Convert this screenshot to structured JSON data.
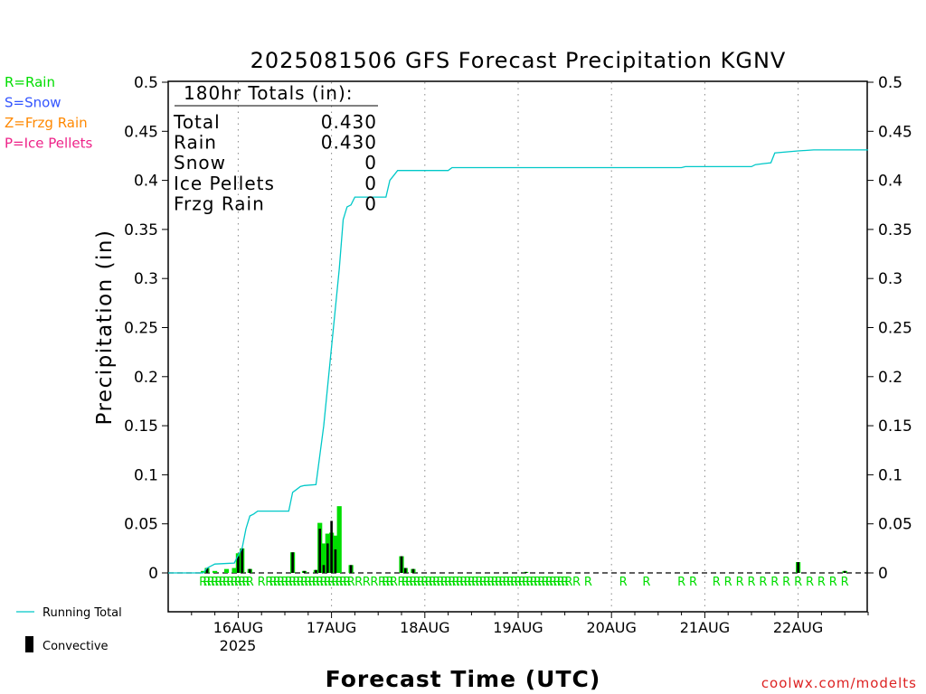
{
  "chart_data": {
    "type": "bar",
    "title": "2025081506 GFS Forecast Precipitation KGNV",
    "ylabel": "Precipitation (in)",
    "xlabel": "Forecast Time (UTC)",
    "ylim": [
      -0.04,
      0.5
    ],
    "y_ticks": [
      "0.5",
      "0.45",
      "0.4",
      "0.35",
      "0.3",
      "0.25",
      "0.2",
      "0.15",
      "0.1",
      "0.05",
      "0"
    ],
    "x_ticks": [
      "16AUG",
      "17AUG",
      "18AUG",
      "19AUG",
      "20AUG",
      "21AUG",
      "22AUG"
    ],
    "x_year": "2025",
    "grid": "vertical dotted at each day",
    "precip_legend": [
      {
        "label": "R=Rain",
        "color": "#00dd00"
      },
      {
        "label": "S=Snow",
        "color": "#3355ff"
      },
      {
        "label": "Z=Frzg Rain",
        "color": "#ff8800"
      },
      {
        "label": "P=Ice Pellets",
        "color": "#ee2288"
      }
    ],
    "totals": {
      "header": "180hr Totals (in):",
      "rows": [
        {
          "label": "Total",
          "value": "0.430"
        },
        {
          "label": "Rain",
          "value": "0.430"
        },
        {
          "label": "Snow",
          "value": "0"
        },
        {
          "label": "Ice Pellets",
          "value": "0"
        },
        {
          "label": "Frzg Rain",
          "value": "0"
        }
      ]
    },
    "series_legend": {
      "running_total": "Running Total",
      "convective": "Convective"
    },
    "colors": {
      "running_total": "#00c8c8",
      "rain_bar": "#00dd00",
      "convective": "#000000"
    },
    "x_units": "hours since 2025-08-15 06Z",
    "running_total": [
      [
        0,
        0
      ],
      [
        9,
        0
      ],
      [
        10,
        0.005
      ],
      [
        12,
        0.009
      ],
      [
        17,
        0.01
      ],
      [
        18,
        0.018
      ],
      [
        19,
        0.025
      ],
      [
        20,
        0.045
      ],
      [
        21,
        0.058
      ],
      [
        22,
        0.06
      ],
      [
        23,
        0.063
      ],
      [
        31,
        0.063
      ],
      [
        32,
        0.082
      ],
      [
        33,
        0.085
      ],
      [
        34,
        0.088
      ],
      [
        35,
        0.089
      ],
      [
        38,
        0.09
      ],
      [
        39,
        0.12
      ],
      [
        40,
        0.15
      ],
      [
        41,
        0.19
      ],
      [
        42,
        0.23
      ],
      [
        43,
        0.27
      ],
      [
        44,
        0.31
      ],
      [
        45,
        0.36
      ],
      [
        46,
        0.373
      ],
      [
        47,
        0.375
      ],
      [
        48,
        0.383
      ],
      [
        56,
        0.383
      ],
      [
        57,
        0.4
      ],
      [
        58,
        0.405
      ],
      [
        59,
        0.41
      ],
      [
        72,
        0.41
      ],
      [
        73,
        0.413
      ],
      [
        132,
        0.413
      ],
      [
        133,
        0.414
      ],
      [
        150,
        0.414
      ],
      [
        151,
        0.416
      ],
      [
        153,
        0.417
      ],
      [
        155,
        0.418
      ],
      [
        156,
        0.428
      ],
      [
        162,
        0.43
      ],
      [
        166,
        0.431
      ],
      [
        180,
        0.431
      ]
    ],
    "rain_bars": [
      [
        9,
        0.002
      ],
      [
        10,
        0.005
      ],
      [
        12,
        0.002
      ],
      [
        15,
        0.004
      ],
      [
        17,
        0.005
      ],
      [
        18,
        0.02
      ],
      [
        19,
        0.025
      ],
      [
        21,
        0.004
      ],
      [
        32,
        0.021
      ],
      [
        35,
        0.002
      ],
      [
        38,
        0.003
      ],
      [
        39,
        0.051
      ],
      [
        40,
        0.03
      ],
      [
        41,
        0.04
      ],
      [
        42,
        0.041
      ],
      [
        43,
        0.038
      ],
      [
        44,
        0.068
      ],
      [
        47,
        0.008
      ],
      [
        60,
        0.017
      ],
      [
        61,
        0.005
      ],
      [
        63,
        0.004
      ],
      [
        92,
        0.001
      ],
      [
        162,
        0.011
      ],
      [
        174,
        0.002
      ]
    ],
    "convective_bars": [
      [
        10,
        0.005
      ],
      [
        18,
        0.017
      ],
      [
        19,
        0.025
      ],
      [
        21,
        0.004
      ],
      [
        32,
        0.021
      ],
      [
        35,
        0.002
      ],
      [
        38,
        0.003
      ],
      [
        39,
        0.045
      ],
      [
        40,
        0.008
      ],
      [
        41,
        0.03
      ],
      [
        42,
        0.053
      ],
      [
        43,
        0.024
      ],
      [
        47,
        0.008
      ],
      [
        60,
        0.017
      ],
      [
        61,
        0.005
      ],
      [
        63,
        0.004
      ],
      [
        92,
        0.001
      ],
      [
        162,
        0.011
      ],
      [
        174,
        0.002
      ]
    ],
    "rain_markers": [
      9,
      10,
      11,
      12,
      13,
      14,
      15,
      16,
      17,
      18,
      19,
      20,
      21,
      24,
      26,
      27,
      28,
      29,
      30,
      31,
      32,
      33,
      34,
      35,
      36,
      37,
      38,
      39,
      40,
      41,
      42,
      43,
      44,
      45,
      46,
      47,
      49,
      51,
      53,
      55,
      56,
      57,
      58,
      60,
      61,
      62,
      63,
      64,
      65,
      66,
      67,
      68,
      69,
      70,
      71,
      72,
      73,
      74,
      75,
      76,
      77,
      78,
      79,
      80,
      81,
      82,
      83,
      84,
      85,
      86,
      87,
      88,
      89,
      90,
      91,
      92,
      93,
      94,
      95,
      96,
      97,
      98,
      99,
      100,
      101,
      102,
      103,
      105,
      108,
      117,
      123,
      132,
      135,
      141,
      144,
      147,
      150,
      153,
      156,
      159,
      162,
      165,
      168,
      171,
      174
    ],
    "marker_letter": "R"
  },
  "credit": "coolwx.com/modelts"
}
